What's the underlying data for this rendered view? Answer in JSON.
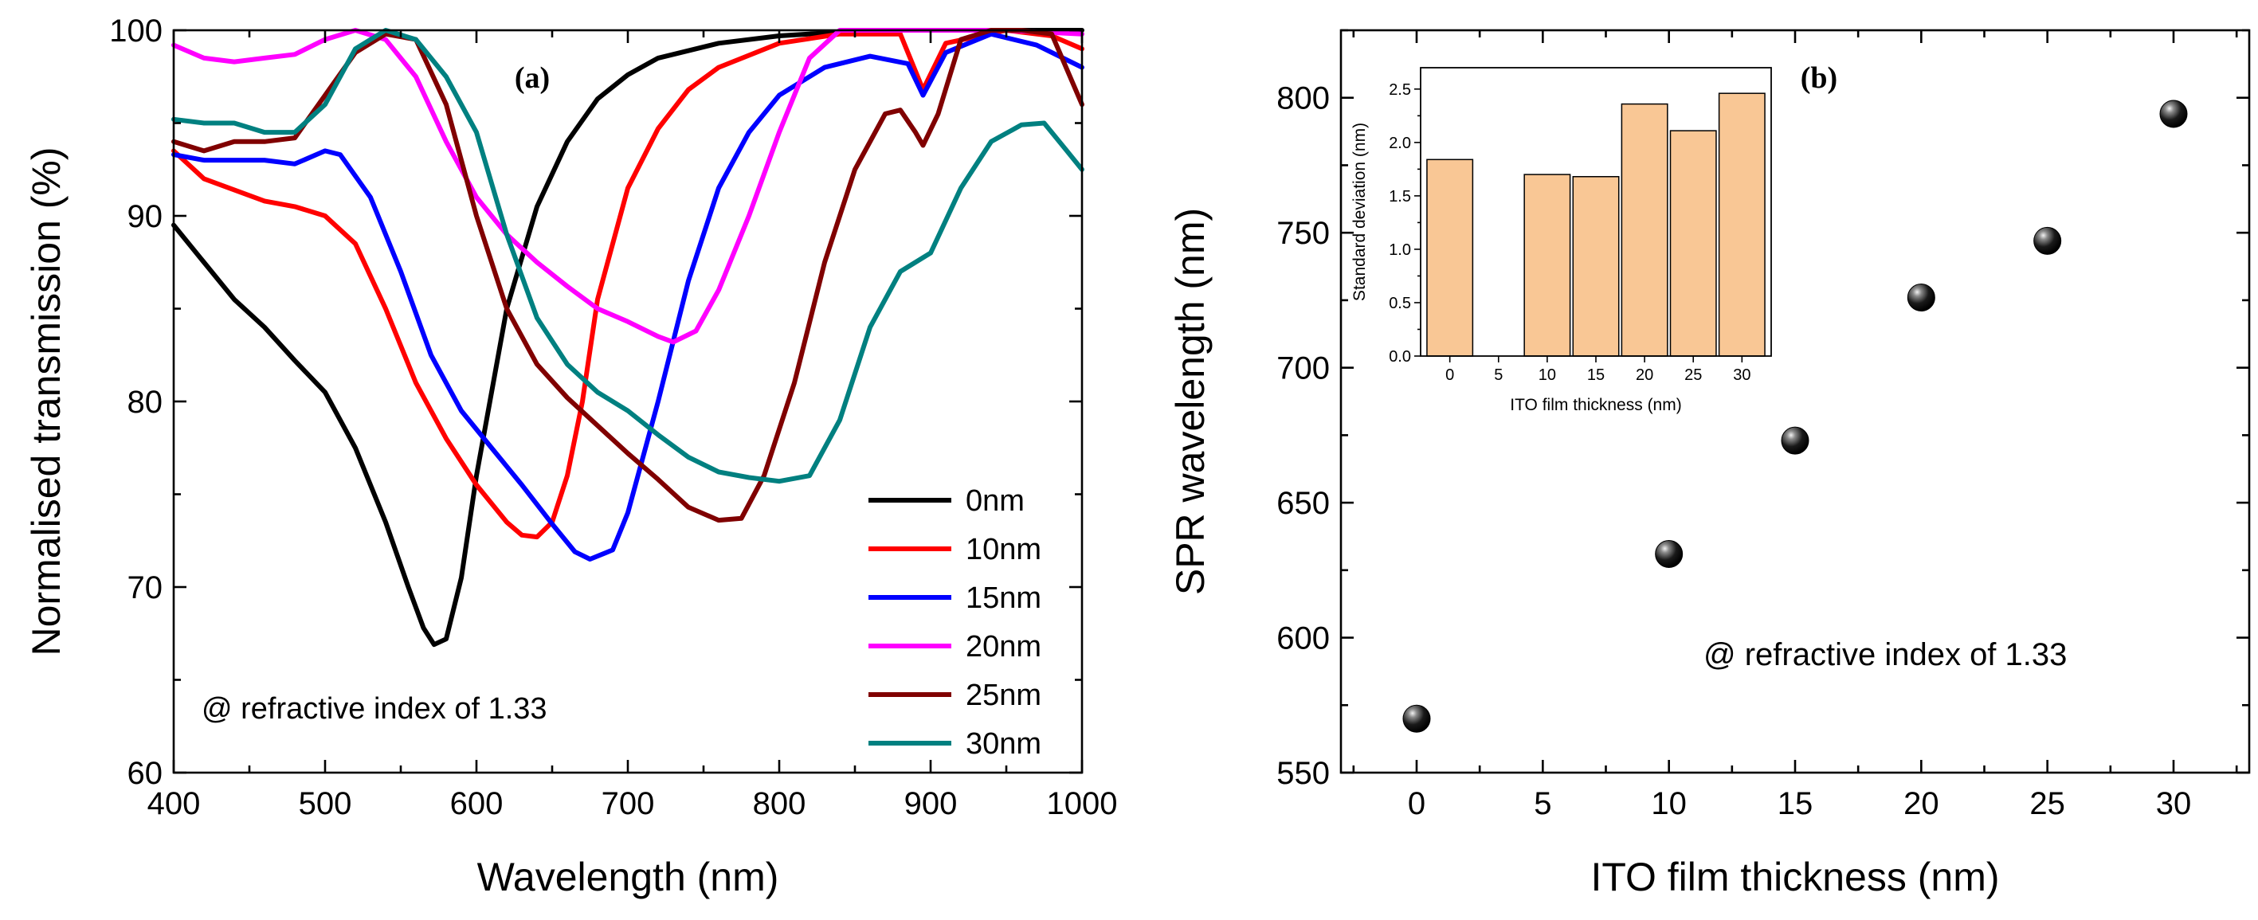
{
  "chart_data": [
    {
      "id": "a",
      "type": "line",
      "panel_label": "(a)",
      "title": "",
      "xlabel": "Wavelength (nm)",
      "ylabel": "Normalised transmission (%)",
      "xlim": [
        400,
        1000
      ],
      "ylim": [
        60,
        100
      ],
      "xticks": [
        400,
        500,
        600,
        700,
        800,
        900,
        1000
      ],
      "yticks": [
        60,
        70,
        80,
        90,
        100
      ],
      "annotation": "@ refractive index of 1.33",
      "legend_position": "bottom-right",
      "series": [
        {
          "name": "0nm",
          "color": "#000000",
          "points": [
            [
              400,
              89.5
            ],
            [
              420,
              87.5
            ],
            [
              440,
              85.5
            ],
            [
              460,
              84
            ],
            [
              480,
              82.2
            ],
            [
              500,
              80.5
            ],
            [
              520,
              77.5
            ],
            [
              540,
              73.5
            ],
            [
              555,
              70
            ],
            [
              565,
              67.8
            ],
            [
              572,
              66.9
            ],
            [
              580,
              67.2
            ],
            [
              590,
              70.5
            ],
            [
              600,
              76
            ],
            [
              620,
              85
            ],
            [
              640,
              90.5
            ],
            [
              660,
              94
            ],
            [
              680,
              96.3
            ],
            [
              700,
              97.6
            ],
            [
              720,
              98.5
            ],
            [
              760,
              99.3
            ],
            [
              800,
              99.7
            ],
            [
              860,
              100
            ],
            [
              900,
              100
            ],
            [
              950,
              100
            ],
            [
              980,
              100
            ],
            [
              1000,
              100
            ]
          ]
        },
        {
          "name": "10nm",
          "color": "#ff0000",
          "points": [
            [
              400,
              93.5
            ],
            [
              420,
              92
            ],
            [
              440,
              91.4
            ],
            [
              460,
              90.8
            ],
            [
              480,
              90.5
            ],
            [
              500,
              90
            ],
            [
              520,
              88.5
            ],
            [
              540,
              85
            ],
            [
              560,
              81
            ],
            [
              580,
              78
            ],
            [
              600,
              75.5
            ],
            [
              620,
              73.5
            ],
            [
              630,
              72.8
            ],
            [
              640,
              72.7
            ],
            [
              650,
              73.5
            ],
            [
              660,
              76
            ],
            [
              670,
              80
            ],
            [
              680,
              85.5
            ],
            [
              700,
              91.5
            ],
            [
              720,
              94.7
            ],
            [
              740,
              96.8
            ],
            [
              760,
              98
            ],
            [
              800,
              99.3
            ],
            [
              840,
              99.8
            ],
            [
              880,
              99.8
            ],
            [
              895,
              96.8
            ],
            [
              910,
              99.3
            ],
            [
              950,
              100
            ],
            [
              980,
              99.7
            ],
            [
              1000,
              99
            ]
          ]
        },
        {
          "name": "15nm",
          "color": "#0000ff",
          "points": [
            [
              400,
              93.3
            ],
            [
              420,
              93
            ],
            [
              440,
              93
            ],
            [
              460,
              93
            ],
            [
              480,
              92.8
            ],
            [
              500,
              93.5
            ],
            [
              510,
              93.3
            ],
            [
              530,
              91
            ],
            [
              550,
              87
            ],
            [
              570,
              82.5
            ],
            [
              590,
              79.5
            ],
            [
              610,
              77.5
            ],
            [
              630,
              75.5
            ],
            [
              650,
              73.4
            ],
            [
              665,
              71.9
            ],
            [
              675,
              71.5
            ],
            [
              690,
              72
            ],
            [
              700,
              74
            ],
            [
              720,
              80
            ],
            [
              740,
              86.5
            ],
            [
              760,
              91.5
            ],
            [
              780,
              94.5
            ],
            [
              800,
              96.5
            ],
            [
              830,
              98
            ],
            [
              860,
              98.6
            ],
            [
              885,
              98.2
            ],
            [
              895,
              96.5
            ],
            [
              910,
              98.8
            ],
            [
              940,
              99.8
            ],
            [
              970,
              99.2
            ],
            [
              1000,
              98
            ]
          ]
        },
        {
          "name": "20nm",
          "color": "#ff00ff",
          "points": [
            [
              400,
              99.2
            ],
            [
              420,
              98.5
            ],
            [
              440,
              98.3
            ],
            [
              460,
              98.5
            ],
            [
              480,
              98.7
            ],
            [
              500,
              99.5
            ],
            [
              520,
              100
            ],
            [
              540,
              99.5
            ],
            [
              560,
              97.5
            ],
            [
              580,
              94
            ],
            [
              600,
              91
            ],
            [
              620,
              89
            ],
            [
              640,
              87.5
            ],
            [
              660,
              86.2
            ],
            [
              680,
              85
            ],
            [
              700,
              84.3
            ],
            [
              720,
              83.5
            ],
            [
              730,
              83.2
            ],
            [
              745,
              83.8
            ],
            [
              760,
              86
            ],
            [
              780,
              90
            ],
            [
              800,
              94.5
            ],
            [
              820,
              98.5
            ],
            [
              840,
              100
            ],
            [
              860,
              100
            ],
            [
              900,
              100
            ],
            [
              950,
              100
            ],
            [
              1000,
              99.8
            ]
          ]
        },
        {
          "name": "25nm",
          "color": "#800000",
          "points": [
            [
              400,
              94
            ],
            [
              420,
              93.5
            ],
            [
              440,
              94
            ],
            [
              460,
              94
            ],
            [
              480,
              94.2
            ],
            [
              500,
              96.5
            ],
            [
              520,
              98.8
            ],
            [
              540,
              99.8
            ],
            [
              560,
              99.5
            ],
            [
              580,
              96
            ],
            [
              600,
              90
            ],
            [
              620,
              85
            ],
            [
              640,
              82
            ],
            [
              660,
              80.2
            ],
            [
              680,
              78.7
            ],
            [
              700,
              77.2
            ],
            [
              720,
              75.8
            ],
            [
              740,
              74.3
            ],
            [
              760,
              73.6
            ],
            [
              775,
              73.7
            ],
            [
              790,
              76
            ],
            [
              810,
              81
            ],
            [
              830,
              87.5
            ],
            [
              850,
              92.5
            ],
            [
              870,
              95.5
            ],
            [
              880,
              95.7
            ],
            [
              890,
              94.5
            ],
            [
              895,
              93.8
            ],
            [
              905,
              95.5
            ],
            [
              920,
              99.5
            ],
            [
              940,
              100
            ],
            [
              960,
              100
            ],
            [
              980,
              99.8
            ],
            [
              1000,
              96
            ]
          ]
        },
        {
          "name": "30nm",
          "color": "#008080",
          "points": [
            [
              400,
              95.2
            ],
            [
              420,
              95
            ],
            [
              440,
              95
            ],
            [
              460,
              94.5
            ],
            [
              480,
              94.5
            ],
            [
              500,
              96
            ],
            [
              520,
              99
            ],
            [
              540,
              100
            ],
            [
              560,
              99.5
            ],
            [
              580,
              97.5
            ],
            [
              600,
              94.5
            ],
            [
              620,
              89
            ],
            [
              640,
              84.5
            ],
            [
              660,
              82
            ],
            [
              680,
              80.5
            ],
            [
              700,
              79.5
            ],
            [
              720,
              78.2
            ],
            [
              740,
              77
            ],
            [
              760,
              76.2
            ],
            [
              780,
              75.9
            ],
            [
              800,
              75.7
            ],
            [
              820,
              76
            ],
            [
              840,
              79
            ],
            [
              860,
              84
            ],
            [
              880,
              87
            ],
            [
              900,
              88
            ],
            [
              920,
              91.5
            ],
            [
              940,
              94
            ],
            [
              960,
              94.9
            ],
            [
              975,
              95
            ],
            [
              990,
              93.5
            ],
            [
              1000,
              92.5
            ]
          ]
        }
      ]
    },
    {
      "id": "b",
      "type": "scatter",
      "panel_label": "(b)",
      "title": "",
      "xlabel": "ITO film thickness (nm)",
      "ylabel": "SPR wavelength (nm)",
      "xlim": [
        -3,
        33
      ],
      "ylim": [
        550,
        825
      ],
      "xticks": [
        0,
        5,
        10,
        15,
        20,
        25,
        30
      ],
      "yticks": [
        550,
        600,
        650,
        700,
        750,
        800
      ],
      "annotation": "@ refractive index of 1.33",
      "x": [
        0,
        10,
        15,
        20,
        25,
        30
      ],
      "y": [
        570,
        631,
        673,
        726,
        747,
        794
      ]
    },
    {
      "id": "b-inset",
      "type": "bar",
      "title": "",
      "xlabel": "ITO film thickness (nm)",
      "ylabel": "Standard deviation (nm)",
      "xlim": [
        -3,
        33
      ],
      "ylim": [
        0,
        2.7
      ],
      "xticks": [
        0,
        5,
        10,
        15,
        20,
        25,
        30
      ],
      "yticks": [
        0.0,
        0.5,
        1.0,
        1.5,
        2.0,
        2.5
      ],
      "categories": [
        0,
        10,
        15,
        20,
        25,
        30
      ],
      "values": [
        1.84,
        1.7,
        1.68,
        2.36,
        2.11,
        2.46
      ]
    }
  ]
}
